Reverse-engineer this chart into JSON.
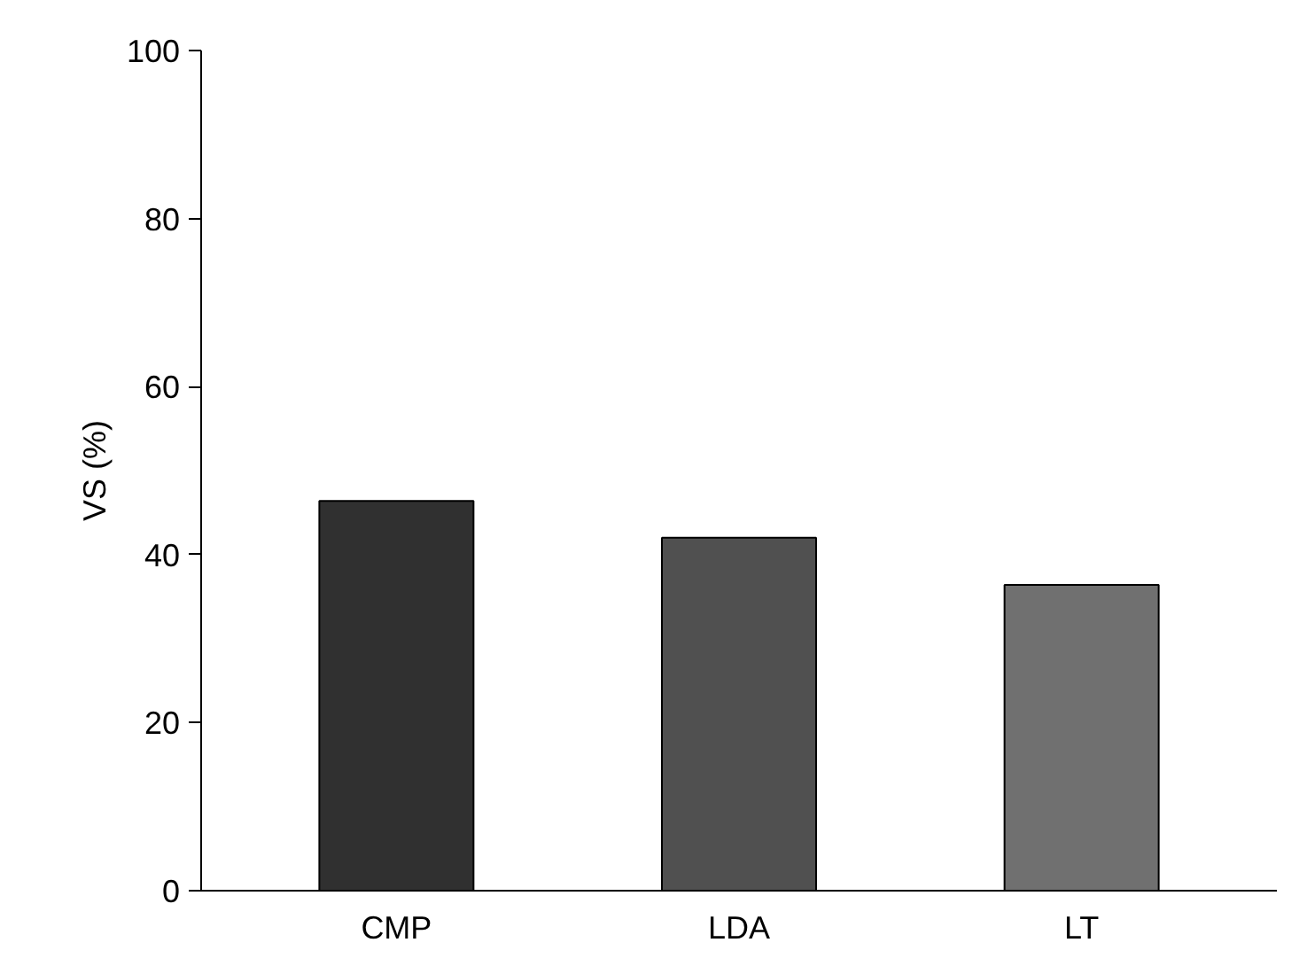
{
  "chart_data": {
    "type": "bar",
    "ylabel": "VS (%)",
    "categories": [
      "CMP",
      "LDA",
      "LT"
    ],
    "values": [
      46.4,
      42.0,
      36.4
    ],
    "colors": [
      "#303030",
      "#505050",
      "#707070"
    ],
    "ylim": [
      0,
      100
    ],
    "yticks": [
      0,
      20,
      40,
      60,
      80,
      100
    ],
    "grid": false
  }
}
